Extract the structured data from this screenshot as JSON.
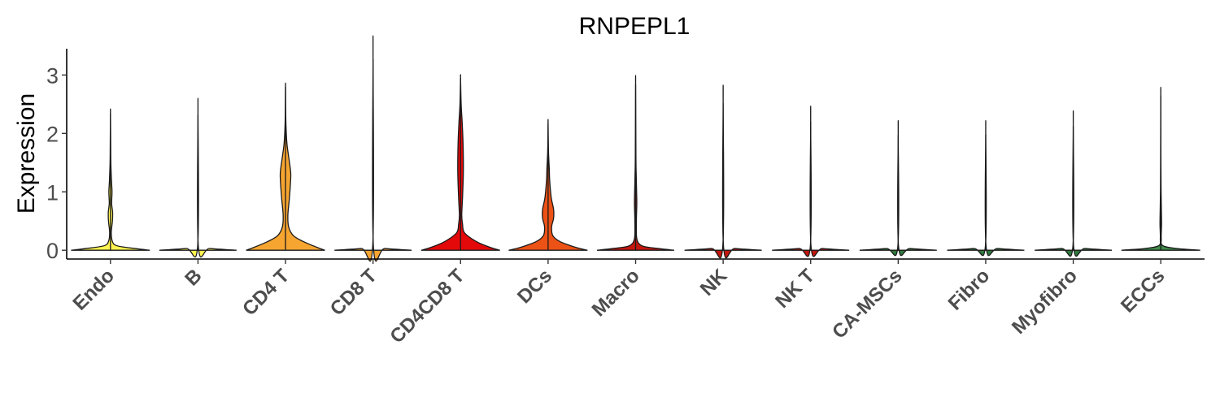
{
  "chart_data": {
    "type": "violin",
    "title": "RNPEPL1",
    "ylabel": "Expression",
    "xlabel": "",
    "ylim": [
      -0.15,
      3.45
    ],
    "yticks": [
      0,
      1,
      2,
      3
    ],
    "legend": "none",
    "grid": false,
    "categories": [
      "Endo",
      "B",
      "CD4 T",
      "CD8 T",
      "CD4CD8 T",
      "DCs",
      "Macro",
      "NK",
      "NK T",
      "CA-MSCs",
      "Fibro",
      "Myofibro",
      "ECCs"
    ],
    "colors": [
      "#FFF34F",
      "#FFF34F",
      "#F7A531",
      "#F7A531",
      "#E3090A",
      "#EC5215",
      "#C4160E",
      "#C4160E",
      "#C4160E",
      "#2F7A3B",
      "#2F7A3B",
      "#2F7A3B",
      "#3E8C4A"
    ],
    "max_values": [
      2.35,
      2.32,
      2.8,
      3.27,
      2.95,
      2.18,
      2.84,
      2.52,
      2.2,
      1.98,
      1.98,
      2.13,
      2.65
    ],
    "density_profiles": [
      [
        [
          0,
          1.0
        ],
        [
          0.04,
          0.5
        ],
        [
          0.08,
          0.15
        ],
        [
          0.15,
          0.05
        ],
        [
          0.3,
          0.02
        ],
        [
          0.5,
          0.05
        ],
        [
          0.65,
          0.055
        ],
        [
          0.8,
          0.03
        ],
        [
          1.0,
          0.04
        ],
        [
          1.2,
          0.025
        ],
        [
          1.5,
          0.01
        ],
        [
          1.8,
          0.006
        ],
        [
          2.35,
          0.0
        ]
      ],
      [
        [
          0,
          0.98
        ],
        [
          0.03,
          0.3
        ],
        [
          0.06,
          0.01
        ],
        [
          2.32,
          0.0
        ]
      ],
      [
        [
          0,
          1.0
        ],
        [
          0.05,
          0.8
        ],
        [
          0.15,
          0.45
        ],
        [
          0.25,
          0.2
        ],
        [
          0.4,
          0.08
        ],
        [
          0.6,
          0.06
        ],
        [
          0.9,
          0.1
        ],
        [
          1.2,
          0.13
        ],
        [
          1.35,
          0.13
        ],
        [
          1.6,
          0.08
        ],
        [
          1.8,
          0.04
        ],
        [
          2.0,
          0.02
        ],
        [
          2.3,
          0.006
        ],
        [
          2.8,
          0.0
        ]
      ],
      [
        [
          0,
          0.98
        ],
        [
          0.03,
          0.3
        ],
        [
          0.06,
          0.01
        ],
        [
          3.27,
          0.0
        ]
      ],
      [
        [
          0,
          1.0
        ],
        [
          0.05,
          0.75
        ],
        [
          0.15,
          0.4
        ],
        [
          0.3,
          0.1
        ],
        [
          0.45,
          0.05
        ],
        [
          0.6,
          0.03
        ],
        [
          0.9,
          0.05
        ],
        [
          1.3,
          0.07
        ],
        [
          1.6,
          0.07
        ],
        [
          1.9,
          0.06
        ],
        [
          2.2,
          0.04
        ],
        [
          2.5,
          0.015
        ],
        [
          2.95,
          0.0
        ]
      ],
      [
        [
          0,
          1.0
        ],
        [
          0.05,
          0.7
        ],
        [
          0.15,
          0.3
        ],
        [
          0.25,
          0.12
        ],
        [
          0.4,
          0.09
        ],
        [
          0.55,
          0.14
        ],
        [
          0.7,
          0.14
        ],
        [
          0.9,
          0.08
        ],
        [
          1.2,
          0.04
        ],
        [
          1.4,
          0.03
        ],
        [
          1.7,
          0.01
        ],
        [
          2.18,
          0.0
        ]
      ],
      [
        [
          0,
          0.98
        ],
        [
          0.04,
          0.45
        ],
        [
          0.08,
          0.15
        ],
        [
          0.2,
          0.03
        ],
        [
          0.5,
          0.02
        ],
        [
          0.8,
          0.03
        ],
        [
          1.0,
          0.025
        ],
        [
          1.3,
          0.015
        ],
        [
          1.6,
          0.008
        ],
        [
          2.84,
          0.0
        ]
      ],
      [
        [
          0,
          0.98
        ],
        [
          0.03,
          0.3
        ],
        [
          0.06,
          0.01
        ],
        [
          2.52,
          0.0
        ]
      ],
      [
        [
          0,
          0.98
        ],
        [
          0.03,
          0.3
        ],
        [
          0.06,
          0.01
        ],
        [
          2.2,
          0.0
        ]
      ],
      [
        [
          0,
          0.98
        ],
        [
          0.03,
          0.3
        ],
        [
          0.06,
          0.01
        ],
        [
          1.98,
          0.0
        ]
      ],
      [
        [
          0,
          0.98
        ],
        [
          0.03,
          0.3
        ],
        [
          0.06,
          0.01
        ],
        [
          1.98,
          0.0
        ]
      ],
      [
        [
          0,
          0.98
        ],
        [
          0.03,
          0.3
        ],
        [
          0.06,
          0.01
        ],
        [
          2.13,
          0.0
        ]
      ],
      [
        [
          0,
          1.0
        ],
        [
          0.03,
          0.4
        ],
        [
          0.08,
          0.05
        ],
        [
          0.2,
          0.012
        ],
        [
          0.45,
          0.02
        ],
        [
          0.7,
          0.015
        ],
        [
          1.0,
          0.008
        ],
        [
          1.5,
          0.004
        ],
        [
          2.65,
          0.0
        ]
      ]
    ]
  }
}
